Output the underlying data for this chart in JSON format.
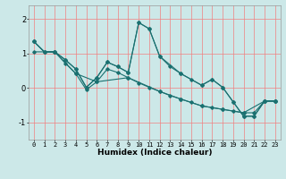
{
  "title": "",
  "xlabel": "Humidex (Indice chaleur)",
  "bg_color": "#cce8e8",
  "grid_color": "#f08080",
  "line_color": "#1a7070",
  "xlim": [
    -0.5,
    23.5
  ],
  "ylim": [
    -1.5,
    2.4
  ],
  "yticks": [
    -1,
    0,
    1,
    2
  ],
  "xticks": [
    0,
    1,
    2,
    3,
    4,
    5,
    6,
    7,
    8,
    9,
    10,
    11,
    12,
    13,
    14,
    15,
    16,
    17,
    18,
    19,
    20,
    21,
    22,
    23
  ],
  "line1": {
    "x": [
      0,
      1,
      2,
      3,
      4,
      5,
      6,
      7,
      8,
      9,
      10,
      11,
      12,
      13,
      14,
      15,
      16,
      17,
      18,
      19,
      20,
      21,
      22,
      23
    ],
    "y": [
      1.35,
      1.05,
      1.05,
      0.82,
      0.55,
      0.02,
      0.3,
      0.75,
      0.62,
      0.45,
      1.9,
      1.72,
      0.92,
      0.62,
      0.42,
      0.25,
      0.08,
      0.25,
      0.02,
      -0.4,
      -0.82,
      -0.82,
      -0.38,
      -0.38
    ]
  },
  "line2": {
    "x": [
      0,
      1,
      2,
      3,
      4,
      5,
      6,
      7,
      8,
      9,
      10,
      11,
      12,
      13,
      14,
      15,
      16,
      17,
      18,
      19,
      20,
      21,
      22,
      23
    ],
    "y": [
      1.35,
      1.05,
      1.05,
      0.72,
      0.42,
      -0.05,
      0.18,
      0.55,
      0.45,
      0.3,
      0.15,
      0.02,
      -0.1,
      -0.22,
      -0.32,
      -0.42,
      -0.52,
      -0.57,
      -0.62,
      -0.67,
      -0.72,
      -0.72,
      -0.38,
      -0.38
    ]
  },
  "line3": {
    "x": [
      0,
      1,
      2,
      3,
      4,
      5,
      6,
      7,
      8,
      9,
      10,
      11,
      12,
      14,
      16,
      17,
      18,
      19,
      20,
      21,
      22,
      23
    ],
    "y": [
      1.35,
      1.05,
      1.05,
      0.82,
      0.55,
      0.02,
      0.3,
      0.75,
      0.62,
      0.45,
      1.9,
      1.72,
      0.92,
      0.42,
      0.08,
      0.25,
      0.02,
      -0.4,
      -0.82,
      -0.82,
      -0.38,
      -0.38
    ]
  },
  "line4": {
    "x": [
      0,
      2,
      4,
      6,
      9,
      12,
      14,
      16,
      18,
      20,
      22,
      23
    ],
    "y": [
      1.05,
      1.05,
      0.42,
      0.18,
      0.3,
      -0.1,
      -0.32,
      -0.52,
      -0.62,
      -0.72,
      -0.38,
      -0.38
    ]
  }
}
